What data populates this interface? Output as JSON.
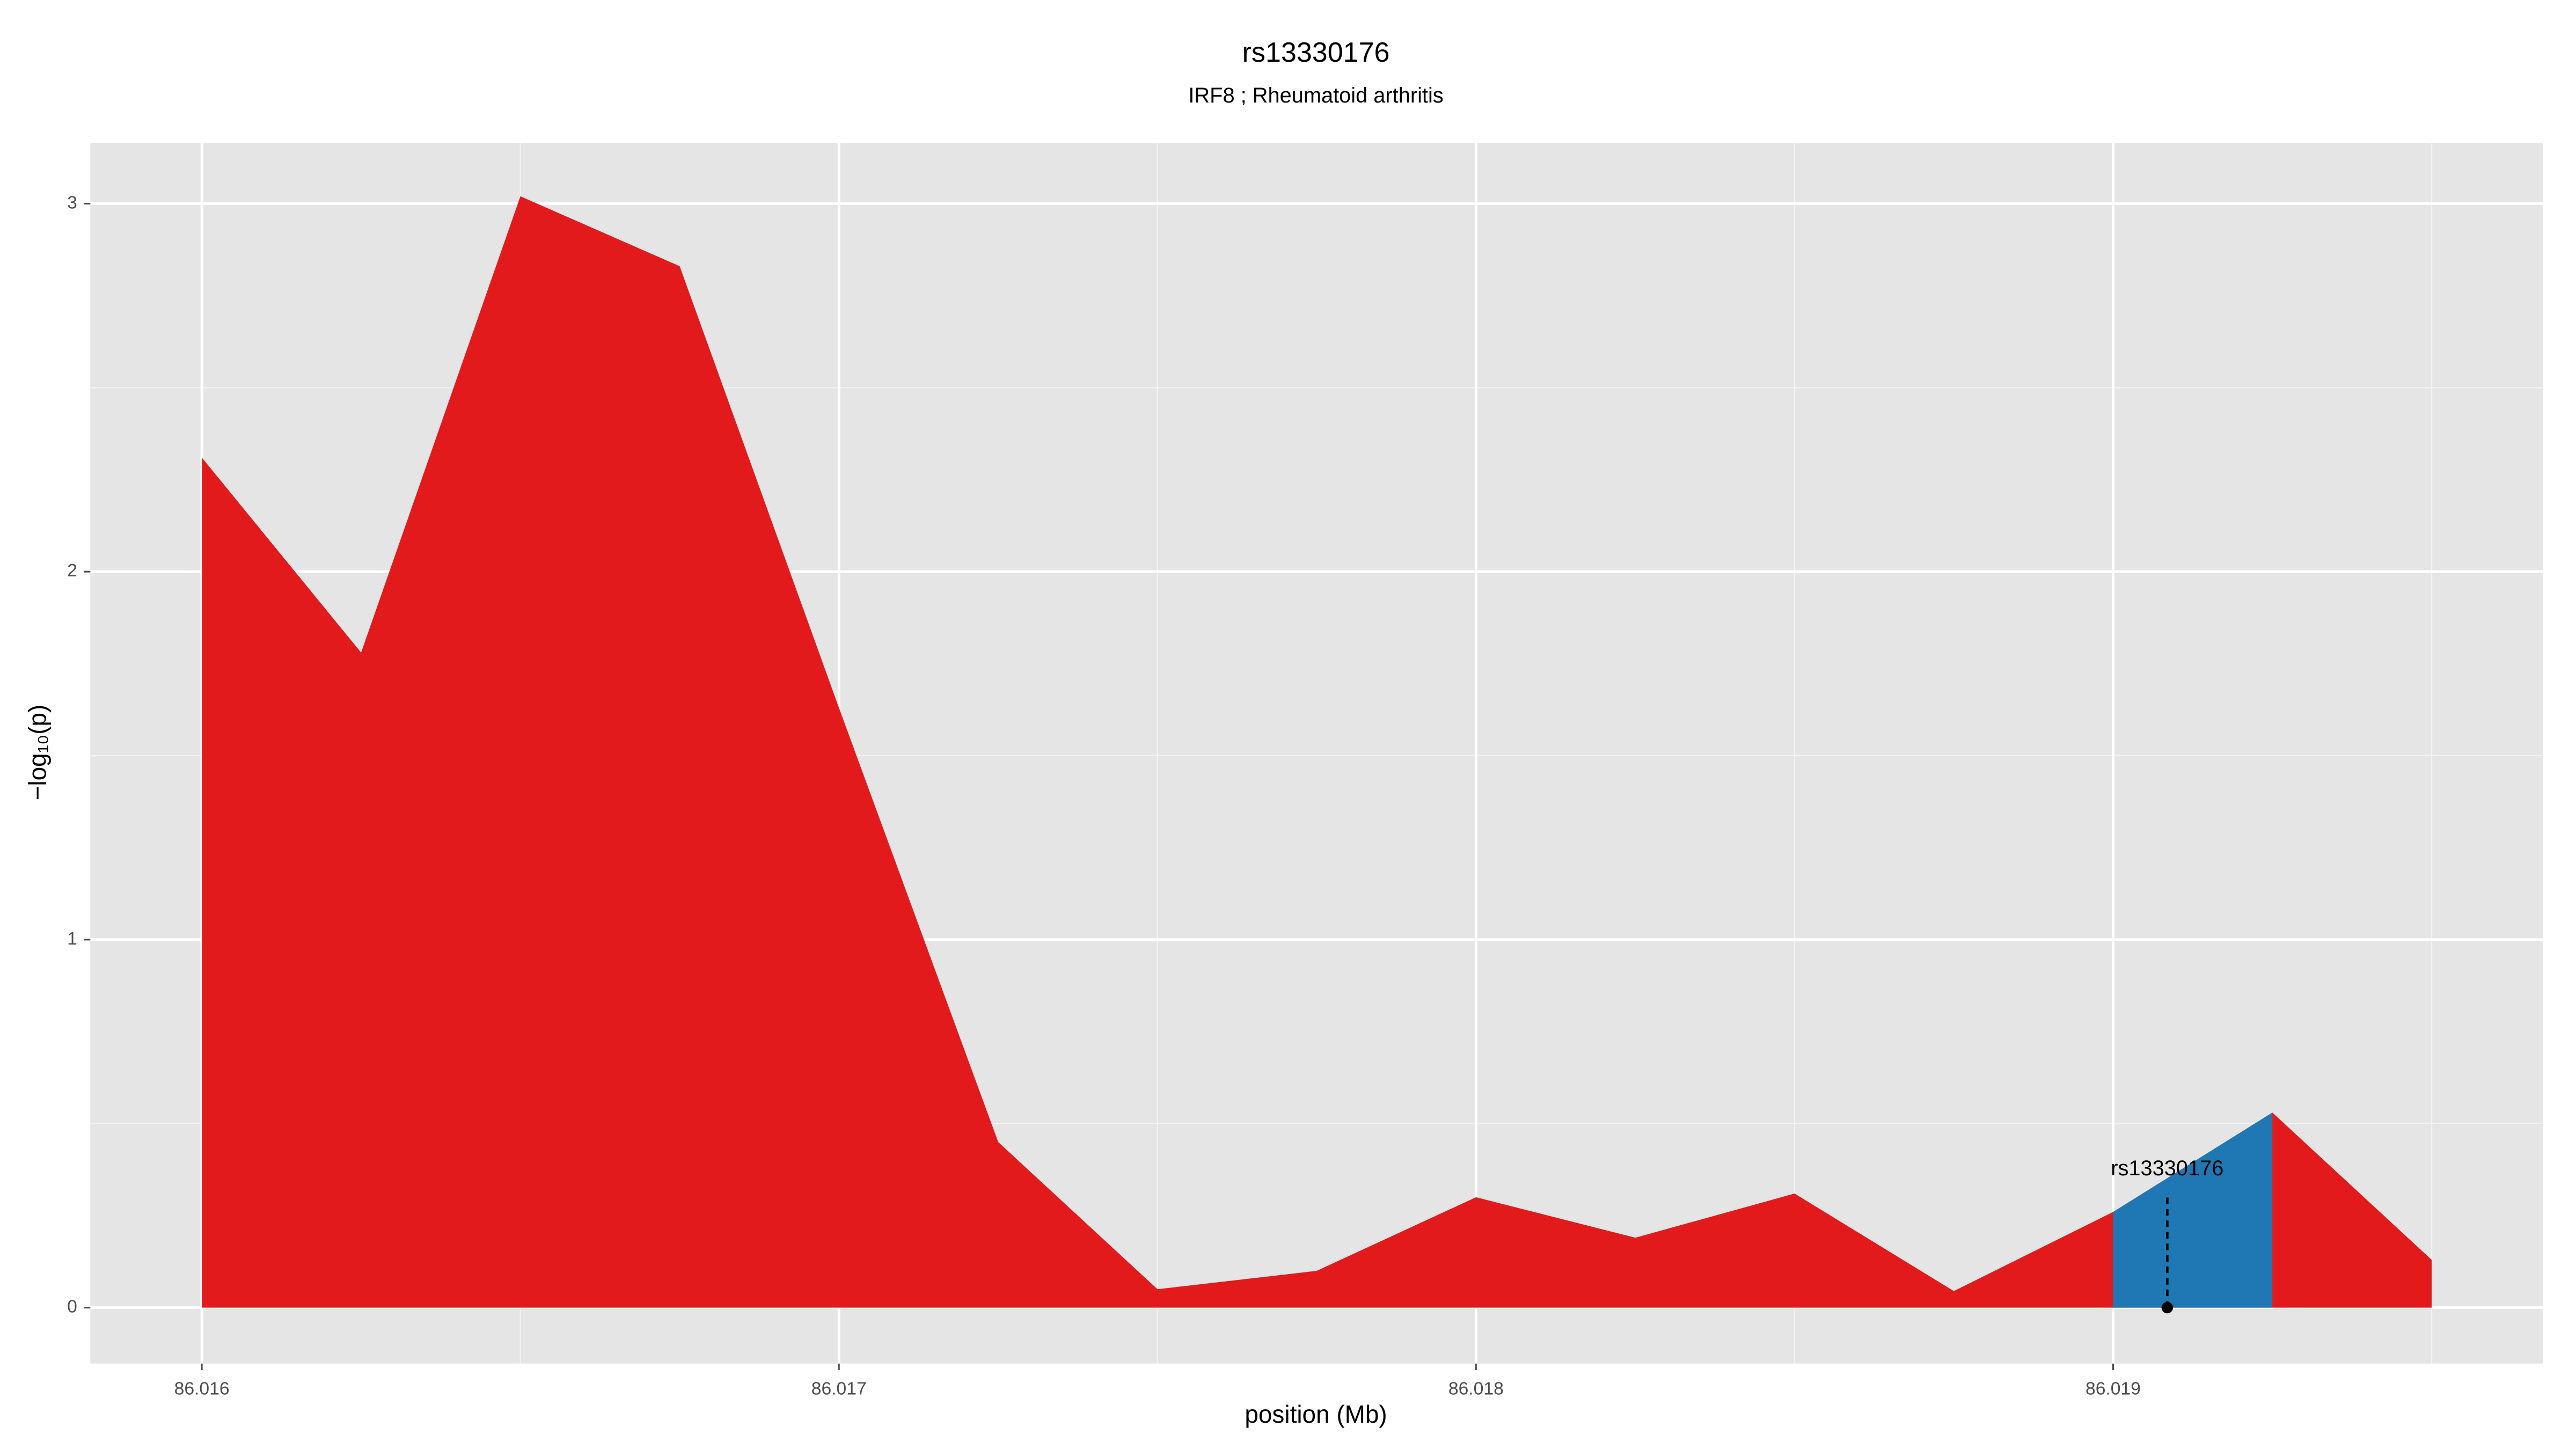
{
  "chart_data": {
    "type": "area",
    "title": "rs13330176",
    "subtitle": "IRF8 ; Rheumatoid arthritis",
    "xlabel": "position (Mb)",
    "ylabel": "−log₁₀(p)",
    "x": [
      86.016,
      86.01625,
      86.0165,
      86.01675,
      86.017,
      86.01725,
      86.0175,
      86.01775,
      86.018,
      86.01825,
      86.0185,
      86.01875,
      86.019,
      86.01925,
      86.0195
    ],
    "series": [
      {
        "color": "#e31a1c",
        "values": [
          2.31,
          1.78,
          3.02,
          2.83,
          1.63,
          0.45,
          0.05,
          0.1,
          0.3,
          0.19,
          0.31,
          0.045,
          0.26,
          0.53,
          0.13
        ]
      }
    ],
    "highlight": {
      "xlim": [
        86.019,
        86.01925
      ],
      "color": "#1f78b4"
    },
    "annotation": {
      "text": "rs13330176",
      "x": 86.019085,
      "y": 0
    },
    "xlim": [
      86.015825,
      86.019675
    ],
    "ylim": [
      -0.152,
      3.165
    ],
    "xticks": [
      86.016,
      86.017,
      86.018,
      86.019
    ],
    "yticks": [
      0,
      1,
      2,
      3
    ],
    "grid": true
  }
}
